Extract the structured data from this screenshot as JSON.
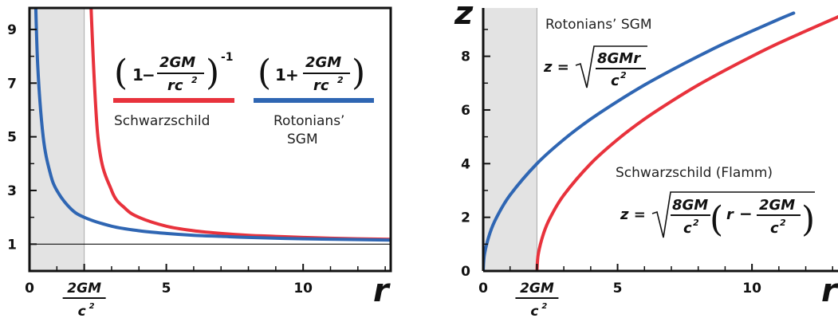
{
  "chart_data": [
    {
      "type": "line",
      "xlabel": "r",
      "xlim": [
        0,
        13.2
      ],
      "ylim": [
        0,
        9.8
      ],
      "shaded_region": [
        0,
        2
      ],
      "reference_line": 1,
      "x_ticks": [
        {
          "value": 0,
          "label": "0"
        },
        {
          "value": 5,
          "label": "5"
        },
        {
          "value": 10,
          "label": "10"
        }
      ],
      "x_special_tick": {
        "value": 2,
        "numerator": "2GM",
        "denominator": "c",
        "exponent": "2"
      },
      "y_ticks": [
        {
          "value": 1,
          "label": "1"
        },
        {
          "value": 3,
          "label": "3"
        },
        {
          "value": 5,
          "label": "5"
        },
        {
          "value": 7,
          "label": "7"
        },
        {
          "value": 9,
          "label": "9"
        }
      ],
      "series": [
        {
          "name": "Schwarzschild",
          "color": "#e8323c",
          "formula": "(1 − 2GM/rc²)^−1",
          "x": [
            2.2,
            2.5,
            3,
            3.5,
            4,
            5,
            6,
            7,
            8,
            9,
            10,
            11,
            12,
            13.2
          ],
          "y": [
            11,
            5,
            3,
            2.33,
            2,
            1.67,
            1.5,
            1.4,
            1.33,
            1.29,
            1.25,
            1.22,
            1.2,
            1.18
          ]
        },
        {
          "name": "Rotonians' SGM",
          "color": "#2f66b3",
          "formula": "(1 + 2GM/rc²)",
          "x": [
            0.2,
            0.3,
            0.5,
            0.75,
            1,
            1.5,
            2,
            3,
            4,
            5,
            6,
            7,
            8,
            10,
            12,
            13.2
          ],
          "y": [
            11,
            7.67,
            5,
            3.67,
            3,
            2.33,
            2,
            1.67,
            1.5,
            1.4,
            1.33,
            1.29,
            1.25,
            1.2,
            1.17,
            1.15
          ]
        }
      ],
      "labels": {
        "schwarzschild": "Schwarzschild",
        "rotonians_line1": "Rotonians’",
        "rotonians_line2": "SGM",
        "one": "1",
        "minus": "−",
        "plus": "+",
        "frac_num": "2GM",
        "frac_den_r": "rc",
        "frac_exp": "2",
        "inverse_exp": "-1"
      }
    },
    {
      "type": "line",
      "ylabel": "z",
      "xlabel": "r",
      "xlim": [
        0,
        13.2
      ],
      "ylim": [
        0,
        9.8
      ],
      "shaded_region": [
        0,
        2
      ],
      "x_ticks": [
        {
          "value": 0,
          "label": "0"
        },
        {
          "value": 5,
          "label": "5"
        },
        {
          "value": 10,
          "label": "10"
        }
      ],
      "x_special_tick": {
        "value": 2,
        "numerator": "2GM",
        "denominator": "c",
        "exponent": "2"
      },
      "y_ticks": [
        {
          "value": 0,
          "label": "0"
        },
        {
          "value": 2,
          "label": "2"
        },
        {
          "value": 4,
          "label": "4"
        },
        {
          "value": 6,
          "label": "6"
        },
        {
          "value": 8,
          "label": "8"
        }
      ],
      "series": [
        {
          "name": "Rotonians’ SGM",
          "color": "#2f66b3",
          "formula": "z = sqrt(8GMr/c²)",
          "x": [
            0,
            0.05,
            0.25,
            0.5,
            1,
            2,
            3,
            4,
            5,
            6,
            7,
            8,
            9,
            10,
            11,
            11.55
          ],
          "y": [
            0,
            0.63,
            1.41,
            2,
            2.83,
            4,
            4.9,
            5.66,
            6.32,
            6.93,
            7.48,
            8,
            8.49,
            8.94,
            9.38,
            9.61
          ]
        },
        {
          "name": "Schwarzschild (Flamm)",
          "color": "#e8323c",
          "formula": "z = sqrt(8GM/c² (r − 2GM/c²))",
          "x": [
            2,
            2.05,
            2.25,
            2.5,
            3,
            4,
            5,
            6,
            7,
            8,
            9,
            10,
            11,
            12,
            13,
            13.2
          ],
          "y": [
            0,
            0.63,
            1.41,
            2,
            2.83,
            4,
            4.9,
            5.66,
            6.32,
            6.93,
            7.48,
            8,
            8.49,
            8.94,
            9.38,
            9.47
          ]
        }
      ],
      "labels": {
        "rotonians": "Rotonians’ SGM",
        "flamm": "Schwarzschild (Flamm)",
        "z_eq": "z =",
        "sgm_num": "8GMr",
        "sgm_den": "c",
        "exp": "2",
        "flamm_num": "8GM",
        "flamm_den": "c",
        "flamm_r": "r",
        "minus": "−",
        "flamm_inner_num": "2GM",
        "flamm_inner_den": "c"
      }
    }
  ]
}
